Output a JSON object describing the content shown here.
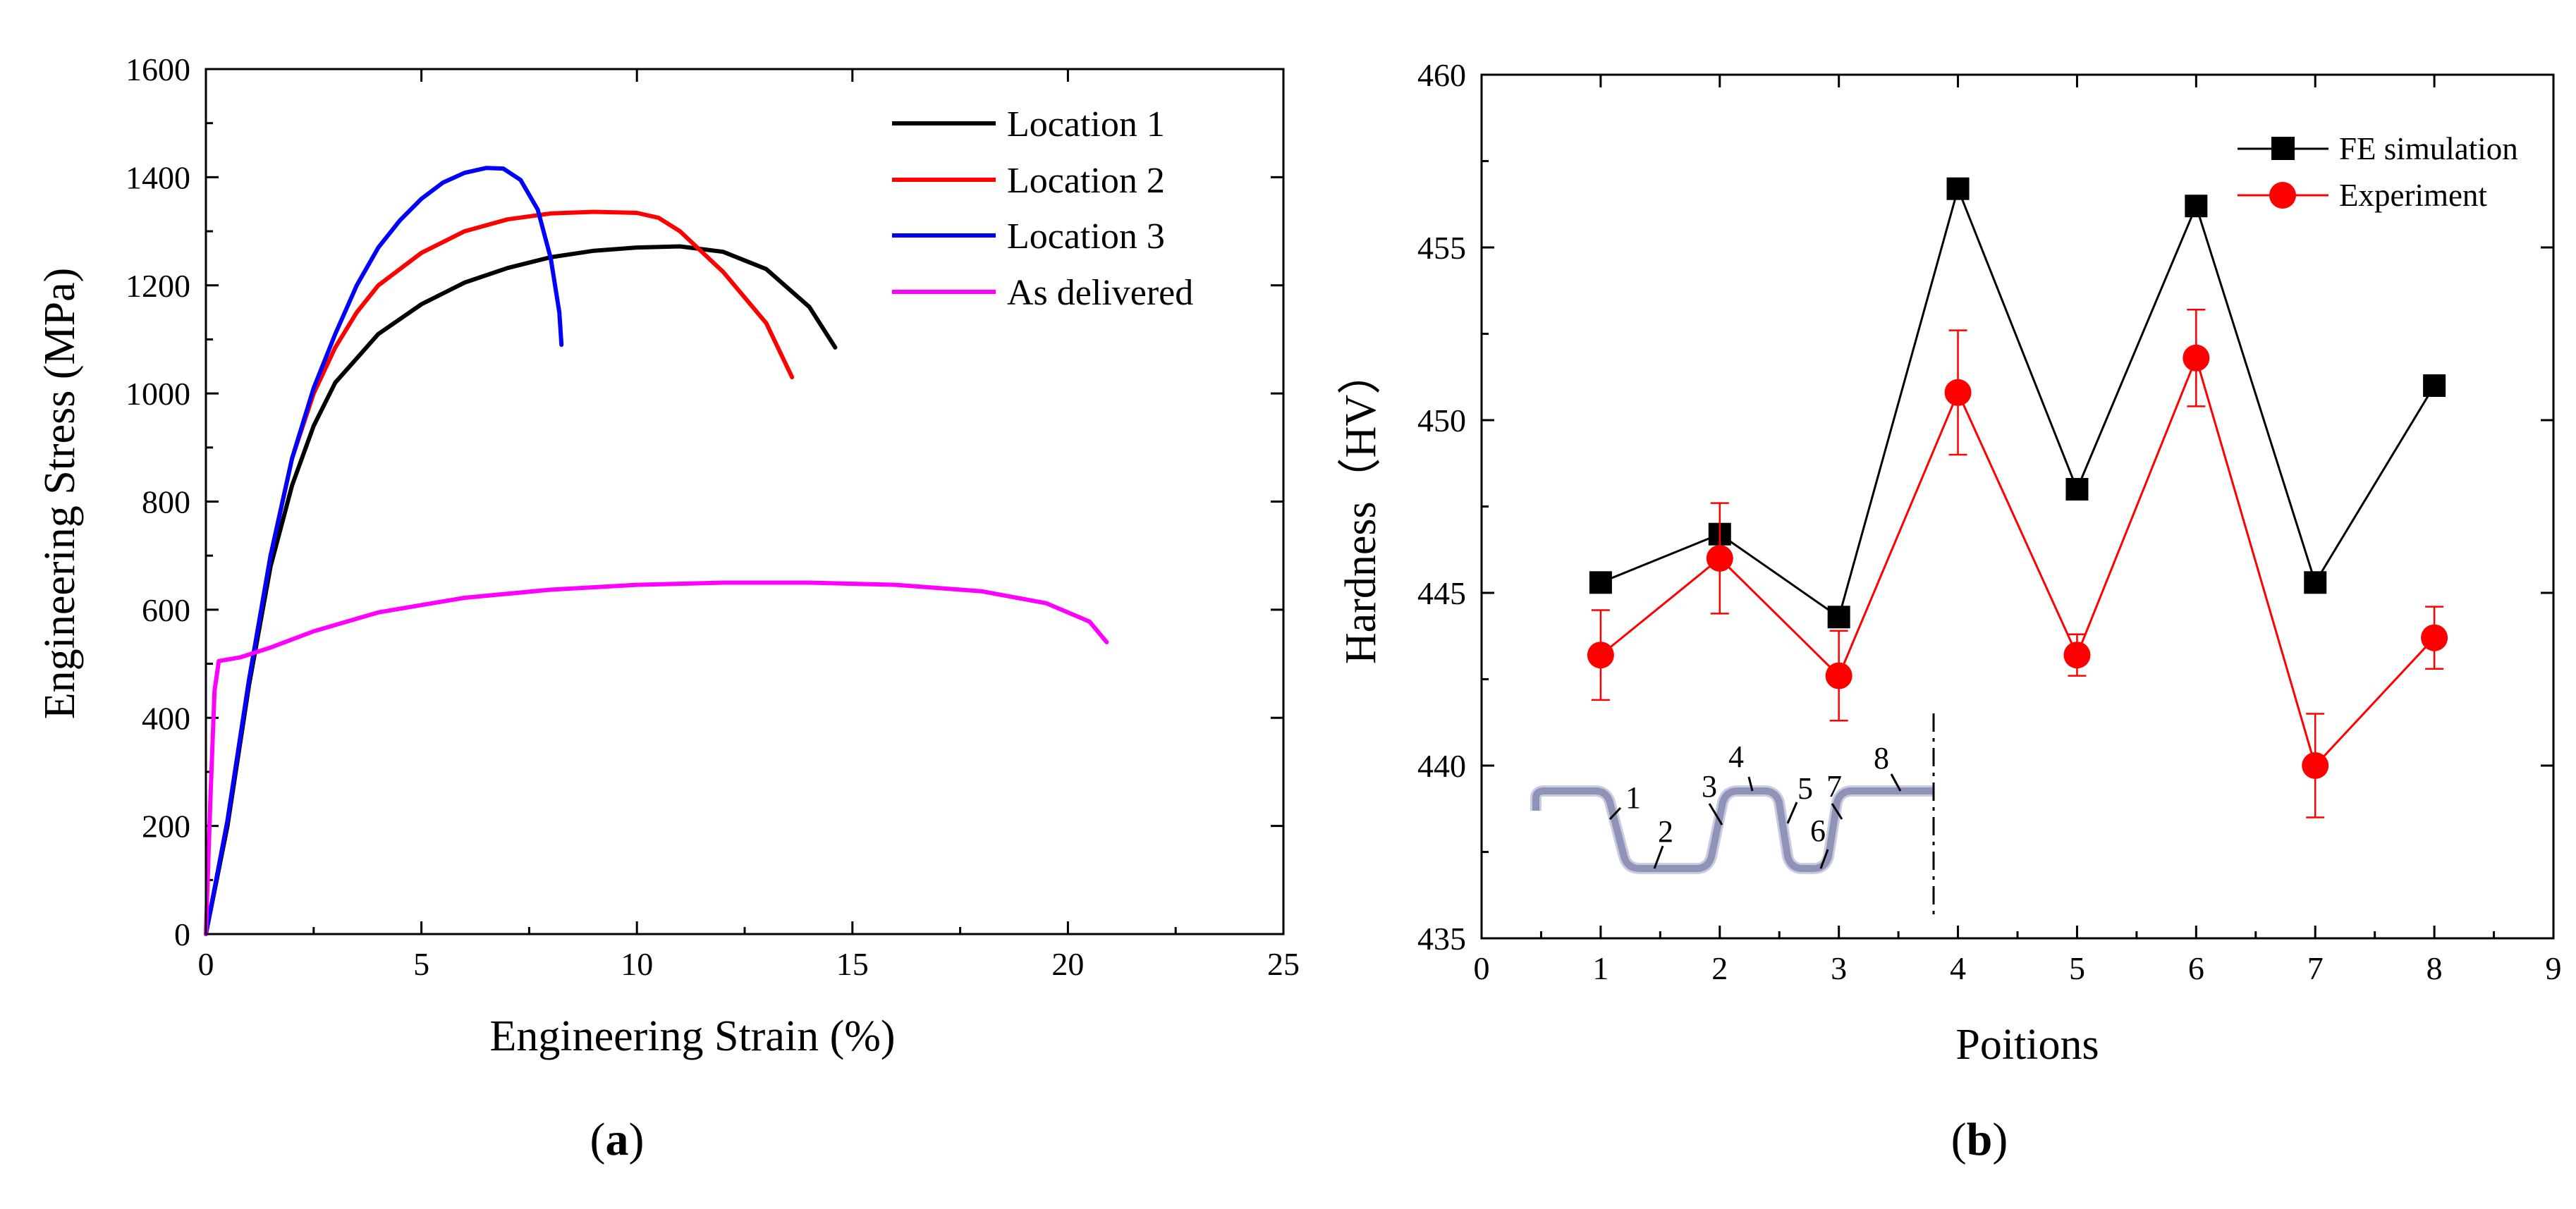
{
  "chart_data": [
    {
      "id": "a",
      "type": "line",
      "panel_label_open": "(",
      "panel_label_letter": "a",
      "panel_label_close": ")",
      "xlabel": "Engineering Strain (%)",
      "ylabel": "Engineering Stress (MPa)",
      "xlim": [
        0,
        25
      ],
      "ylim": [
        0,
        1600
      ],
      "xticks": [
        0,
        5,
        10,
        15,
        20,
        25
      ],
      "yticks": [
        0,
        200,
        400,
        600,
        800,
        1000,
        1200,
        1400,
        1600
      ],
      "legend_position": "top-right",
      "series": [
        {
          "name": "Location 1",
          "color": "#000000",
          "points": [
            [
              0,
              0
            ],
            [
              0.5,
              200
            ],
            [
              1,
              460
            ],
            [
              1.5,
              680
            ],
            [
              2,
              830
            ],
            [
              2.5,
              940
            ],
            [
              3,
              1020
            ],
            [
              4,
              1110
            ],
            [
              5,
              1165
            ],
            [
              6,
              1205
            ],
            [
              7,
              1232
            ],
            [
              8,
              1252
            ],
            [
              9,
              1264
            ],
            [
              10,
              1270
            ],
            [
              11,
              1272
            ],
            [
              12,
              1262
            ],
            [
              13,
              1230
            ],
            [
              14,
              1160
            ],
            [
              14.6,
              1085
            ]
          ]
        },
        {
          "name": "Location 2",
          "color": "#ff0000",
          "points": [
            [
              0,
              0
            ],
            [
              0.5,
              210
            ],
            [
              1,
              470
            ],
            [
              1.5,
              700
            ],
            [
              2,
              880
            ],
            [
              2.5,
              1000
            ],
            [
              3,
              1085
            ],
            [
              3.5,
              1150
            ],
            [
              4,
              1200
            ],
            [
              5,
              1260
            ],
            [
              6,
              1300
            ],
            [
              7,
              1322
            ],
            [
              8,
              1333
            ],
            [
              9,
              1336
            ],
            [
              10,
              1334
            ],
            [
              10.5,
              1325
            ],
            [
              11,
              1300
            ],
            [
              12,
              1225
            ],
            [
              13,
              1130
            ],
            [
              13.6,
              1030
            ]
          ]
        },
        {
          "name": "Location 3",
          "color": "#0000ff",
          "points": [
            [
              0,
              0
            ],
            [
              0.5,
              210
            ],
            [
              1,
              470
            ],
            [
              1.5,
              700
            ],
            [
              2,
              880
            ],
            [
              2.5,
              1010
            ],
            [
              3,
              1110
            ],
            [
              3.5,
              1200
            ],
            [
              4,
              1270
            ],
            [
              4.5,
              1320
            ],
            [
              5,
              1360
            ],
            [
              5.5,
              1390
            ],
            [
              6,
              1408
            ],
            [
              6.5,
              1417
            ],
            [
              6.9,
              1416
            ],
            [
              7.3,
              1395
            ],
            [
              7.7,
              1340
            ],
            [
              8.0,
              1250
            ],
            [
              8.2,
              1150
            ],
            [
              8.25,
              1090
            ]
          ]
        },
        {
          "name": "As delivered",
          "color": "#ff00ff",
          "points": [
            [
              0,
              0
            ],
            [
              0.1,
              240
            ],
            [
              0.2,
              450
            ],
            [
              0.3,
              505
            ],
            [
              0.8,
              512
            ],
            [
              1.5,
              530
            ],
            [
              2.5,
              560
            ],
            [
              4,
              595
            ],
            [
              6,
              622
            ],
            [
              8,
              637
            ],
            [
              10,
              646
            ],
            [
              12,
              650
            ],
            [
              14,
              650
            ],
            [
              16,
              646
            ],
            [
              18,
              634
            ],
            [
              19.5,
              612
            ],
            [
              20.5,
              578
            ],
            [
              20.9,
              540
            ]
          ]
        }
      ]
    },
    {
      "id": "b",
      "type": "line",
      "panel_label_open": "(",
      "panel_label_letter": "b",
      "panel_label_close": ")",
      "xlabel": "Poitions",
      "ylabel": "Hardness（HV）",
      "xlim": [
        0,
        9
      ],
      "ylim": [
        435,
        460
      ],
      "xticks": [
        0,
        1,
        2,
        3,
        4,
        5,
        6,
        7,
        8,
        9
      ],
      "yticks": [
        435,
        440,
        445,
        450,
        455,
        460
      ],
      "legend_position": "top-right",
      "series": [
        {
          "name": "FE simulation",
          "color": "#000000",
          "marker": "square",
          "x": [
            1,
            2,
            3,
            4,
            5,
            6,
            7,
            8
          ],
          "values": [
            445.3,
            446.7,
            444.3,
            456.7,
            448.0,
            456.2,
            445.3,
            451.0
          ]
        },
        {
          "name": "Experiment",
          "color": "#ff0000",
          "marker": "circle",
          "x": [
            1,
            2,
            3,
            4,
            5,
            6,
            7,
            8
          ],
          "values": [
            443.2,
            446.0,
            442.6,
            450.8,
            443.2,
            451.8,
            440.0,
            443.7
          ],
          "errors": [
            1.3,
            1.6,
            1.3,
            1.8,
            0.6,
            1.4,
            1.5,
            0.9
          ]
        }
      ],
      "inset": {
        "labels": [
          "1",
          "2",
          "3",
          "4",
          "5",
          "6",
          "7",
          "8"
        ],
        "profile_color": "#9b9fc0"
      }
    }
  ]
}
